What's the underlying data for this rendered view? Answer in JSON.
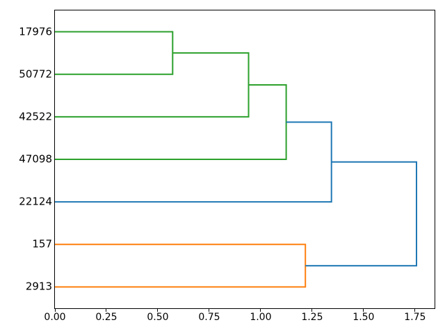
{
  "figure": {
    "background": "#ffffff"
  },
  "chart_data": {
    "type": "dendrogram",
    "orientation": "right",
    "title": "",
    "xlabel": "",
    "ylabel": "",
    "grid": false,
    "legend": null,
    "xlim": [
      0,
      1.845
    ],
    "ylim": [
      0,
      70
    ],
    "x_ticks": [
      {
        "value": 0.0,
        "label": "0.00"
      },
      {
        "value": 0.25,
        "label": "0.25"
      },
      {
        "value": 0.5,
        "label": "0.50"
      },
      {
        "value": 0.75,
        "label": "0.75"
      },
      {
        "value": 1.0,
        "label": "1.00"
      },
      {
        "value": 1.25,
        "label": "1.25"
      },
      {
        "value": 1.5,
        "label": "1.50"
      },
      {
        "value": 1.75,
        "label": "1.75"
      }
    ],
    "leaves": [
      {
        "label": "17976",
        "y": 65
      },
      {
        "label": "50772",
        "y": 55
      },
      {
        "label": "42522",
        "y": 45
      },
      {
        "label": "47098",
        "y": 35
      },
      {
        "label": "22124",
        "y": 25
      },
      {
        "label": "157",
        "y": 15
      },
      {
        "label": "2913",
        "y": 5
      }
    ],
    "links": [
      {
        "children": [
          "17976",
          "50772"
        ],
        "height": 0.572,
        "y_top": 65,
        "x_top": 0,
        "y_bot": 55,
        "x_bot": 0,
        "color": "#2ca02c"
      },
      {
        "children": [
          "(17976,50772)",
          "42522"
        ],
        "height": 0.941,
        "y_top": 60,
        "x_top": 0.572,
        "y_bot": 45,
        "x_bot": 0,
        "color": "#2ca02c"
      },
      {
        "children": [
          "(…)",
          "47098"
        ],
        "height": 1.124,
        "y_top": 52.5,
        "x_top": 0.941,
        "y_bot": 35,
        "x_bot": 0,
        "color": "#2ca02c"
      },
      {
        "children": [
          "(…)",
          "22124"
        ],
        "height": 1.344,
        "y_top": 43.75,
        "x_top": 1.124,
        "y_bot": 25,
        "x_bot": 0,
        "color": "#1f77b4"
      },
      {
        "children": [
          "157",
          "2913"
        ],
        "height": 1.217,
        "y_top": 15,
        "x_top": 0,
        "y_bot": 5,
        "x_bot": 0,
        "color": "#ff7f0e"
      },
      {
        "children": [
          "(…)",
          "(157,2913)"
        ],
        "height": 1.757,
        "y_top": 34.375,
        "x_top": 1.344,
        "y_bot": 10,
        "x_bot": 1.217,
        "color": "#1f77b4"
      }
    ],
    "colors": {
      "above_threshold": "#1f77b4",
      "cluster_orange": "#ff7f0e",
      "cluster_green": "#2ca02c",
      "axes": "#000000"
    },
    "line_width": 2
  }
}
